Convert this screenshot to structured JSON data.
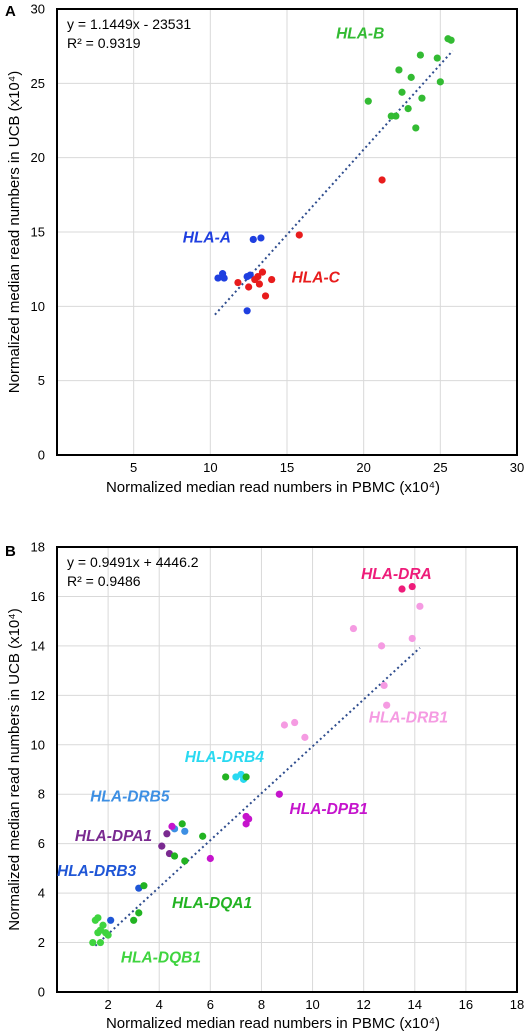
{
  "chart_data": [
    {
      "panel": "A",
      "type": "scatter",
      "xlabel": "Normalized median read numbers in PBMC (x10⁴)",
      "ylabel": "Normalized median read numbers in UCB (x10⁴)",
      "xlim": [
        0,
        30
      ],
      "ylim": [
        0,
        30
      ],
      "xticks": [
        5,
        10,
        15,
        20,
        25,
        30
      ],
      "yticks": [
        0,
        5,
        10,
        15,
        20,
        25,
        30
      ],
      "grid": true,
      "equation": "y = 1.1449x - 23531",
      "r2": "R² = 0.9319",
      "trendline": {
        "slope": 1.1449,
        "intercept": -2.3531,
        "x_range": [
          10.3,
          25.8
        ]
      },
      "series": [
        {
          "name": "HLA-B",
          "color": "#33bb33",
          "points": [
            [
              25.5,
              28.0
            ],
            [
              25.7,
              27.9
            ],
            [
              24.8,
              26.7
            ],
            [
              23.7,
              26.9
            ],
            [
              22.3,
              25.9
            ],
            [
              25.0,
              25.1
            ],
            [
              23.1,
              25.4
            ],
            [
              22.5,
              24.4
            ],
            [
              20.3,
              23.8
            ],
            [
              22.1,
              22.8
            ],
            [
              21.8,
              22.8
            ],
            [
              22.9,
              23.3
            ],
            [
              23.8,
              24.0
            ],
            [
              23.4,
              22.0
            ]
          ]
        },
        {
          "name": "HLA-A",
          "color": "#1f3fe0",
          "points": [
            [
              12.8,
              14.5
            ],
            [
              13.3,
              14.6
            ],
            [
              12.4,
              12.0
            ],
            [
              12.6,
              12.1
            ],
            [
              10.8,
              12.2
            ],
            [
              10.5,
              11.9
            ],
            [
              10.9,
              11.9
            ],
            [
              12.4,
              9.7
            ]
          ]
        },
        {
          "name": "HLA-C",
          "color": "#e81c1c",
          "points": [
            [
              15.8,
              14.8
            ],
            [
              21.2,
              18.5
            ],
            [
              13.1,
              12.0
            ],
            [
              13.4,
              12.3
            ],
            [
              12.9,
              11.8
            ],
            [
              14.0,
              11.8
            ],
            [
              11.8,
              11.6
            ],
            [
              12.5,
              11.3
            ],
            [
              13.2,
              11.5
            ],
            [
              13.6,
              10.7
            ]
          ]
        }
      ],
      "labels": [
        {
          "text": "HLA-B",
          "series": "HLA-B",
          "at": [
            18.2,
            28.0
          ]
        },
        {
          "text": "HLA-A",
          "series": "HLA-A",
          "at": [
            8.2,
            14.3
          ]
        },
        {
          "text": "HLA-C",
          "series": "HLA-C",
          "at": [
            15.3,
            11.6
          ]
        }
      ]
    },
    {
      "panel": "B",
      "type": "scatter",
      "xlabel": "Normalized median read numbers in PBMC (x10⁴)",
      "ylabel": "Normalized median read numbers in UCB (x10⁴)",
      "xlim": [
        0,
        18
      ],
      "ylim": [
        0,
        18
      ],
      "xticks": [
        2,
        4,
        6,
        8,
        10,
        12,
        14,
        16,
        18
      ],
      "yticks": [
        0,
        2,
        4,
        6,
        8,
        10,
        12,
        14,
        16,
        18
      ],
      "grid": true,
      "equation": "y = 0.9491x + 4446.2",
      "r2": "R² = 0.9486",
      "trendline": {
        "slope": 0.9491,
        "intercept": 0.44462,
        "x_range": [
          1.5,
          14.2
        ]
      },
      "series": [
        {
          "name": "HLA-DRA",
          "color": "#ee1c7a",
          "points": [
            [
              13.5,
              16.3
            ],
            [
              13.9,
              16.4
            ]
          ]
        },
        {
          "name": "HLA-DRB1",
          "color": "#f59be2",
          "points": [
            [
              14.2,
              15.6
            ],
            [
              11.6,
              14.7
            ],
            [
              13.9,
              14.3
            ],
            [
              12.7,
              14.0
            ],
            [
              12.8,
              12.4
            ],
            [
              12.9,
              11.6
            ],
            [
              9.3,
              10.9
            ],
            [
              8.9,
              10.8
            ],
            [
              9.7,
              10.3
            ]
          ]
        },
        {
          "name": "HLA-DRB4",
          "color": "#29d9f1",
          "points": [
            [
              7.2,
              8.8
            ],
            [
              7.0,
              8.7
            ],
            [
              7.3,
              8.6
            ]
          ]
        },
        {
          "name": "HLA-DRB5",
          "color": "#3d8fe3",
          "points": [
            [
              4.6,
              6.6
            ],
            [
              5.0,
              6.5
            ]
          ]
        },
        {
          "name": "HLA-DPB1",
          "color": "#c514cc",
          "points": [
            [
              8.7,
              8.0
            ],
            [
              7.4,
              7.1
            ],
            [
              7.5,
              7.0
            ],
            [
              7.4,
              6.8
            ],
            [
              4.5,
              6.7
            ],
            [
              6.0,
              5.4
            ]
          ]
        },
        {
          "name": "HLA-DPA1",
          "color": "#7a2a90",
          "points": [
            [
              4.3,
              6.4
            ],
            [
              4.1,
              5.9
            ],
            [
              4.4,
              5.6
            ]
          ]
        },
        {
          "name": "HLA-DRB3",
          "color": "#1f56d6",
          "points": [
            [
              3.2,
              4.2
            ],
            [
              2.1,
              2.9
            ]
          ]
        },
        {
          "name": "HLA-DQA1",
          "color": "#22b322",
          "points": [
            [
              6.6,
              8.7
            ],
            [
              7.4,
              8.7
            ],
            [
              4.9,
              6.8
            ],
            [
              5.7,
              6.3
            ],
            [
              4.6,
              5.5
            ],
            [
              5.0,
              5.3
            ],
            [
              3.4,
              4.3
            ],
            [
              3.2,
              3.2
            ],
            [
              3.0,
              2.9
            ]
          ]
        },
        {
          "name": "HLA-DQB1",
          "color": "#3fd43f",
          "points": [
            [
              1.5,
              2.9
            ],
            [
              1.6,
              3.0
            ],
            [
              1.8,
              2.7
            ],
            [
              1.6,
              2.4
            ],
            [
              1.9,
              2.4
            ],
            [
              2.0,
              2.3
            ],
            [
              1.7,
              2.5
            ],
            [
              1.7,
              2.0
            ],
            [
              1.4,
              2.0
            ]
          ]
        }
      ],
      "labels": [
        {
          "text": "HLA-DRA",
          "series": "HLA-DRA",
          "at": [
            11.9,
            16.7
          ]
        },
        {
          "text": "HLA-DRB1",
          "series": "HLA-DRB1",
          "at": [
            12.2,
            10.9
          ]
        },
        {
          "text": "HLA-DRB4",
          "series": "HLA-DRB4",
          "at": [
            5.0,
            9.3
          ]
        },
        {
          "text": "HLA-DRB5",
          "series": "HLA-DRB5",
          "at": [
            1.3,
            7.7
          ]
        },
        {
          "text": "HLA-DPB1",
          "series": "HLA-DPB1",
          "at": [
            9.1,
            7.2
          ]
        },
        {
          "text": "HLA-DPA1",
          "series": "HLA-DPA1",
          "at": [
            0.7,
            6.1
          ]
        },
        {
          "text": "HLA-DRB3",
          "series": "HLA-DRB3",
          "at": [
            0.0,
            4.7
          ]
        },
        {
          "text": "HLA-DQA1",
          "series": "HLA-DQA1",
          "at": [
            4.5,
            3.4
          ]
        },
        {
          "text": "HLA-DQB1",
          "series": "HLA-DQB1",
          "at": [
            2.5,
            1.2
          ]
        }
      ]
    }
  ]
}
